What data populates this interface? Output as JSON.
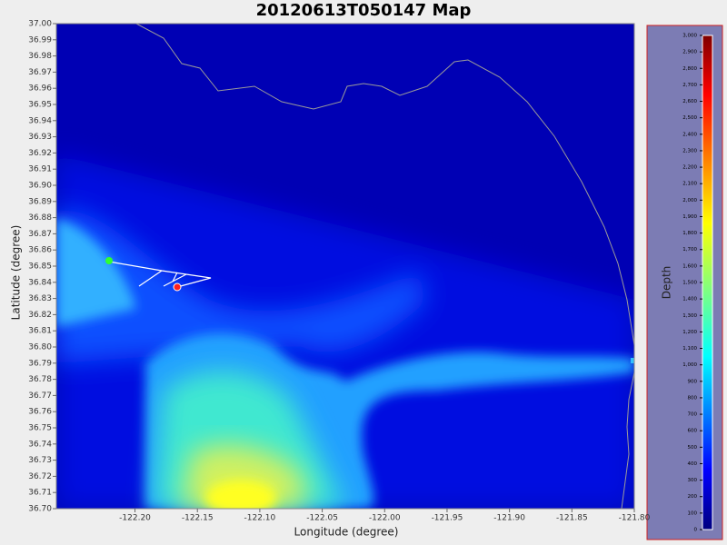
{
  "title": "20120613T050147 Map",
  "x_axis": {
    "label": "Longitude (degree)",
    "lim": [
      -122.263,
      -121.8
    ],
    "ticks": [
      {
        "value": -122.2,
        "label": "-122.20"
      },
      -122.15,
      {
        "value": -122.1,
        "label": "-122.10"
      },
      -122.05,
      {
        "value": -122.0,
        "label": "-122.00"
      },
      -121.95,
      {
        "value": -121.9,
        "label": "-121.90"
      },
      -121.85,
      {
        "value": -121.8,
        "label": "-121.80"
      }
    ]
  },
  "y_axis": {
    "label": "Latitude (degree)",
    "lim": [
      36.7,
      37.0
    ],
    "ticks": [
      {
        "value": 36.7,
        "label": "36.70"
      },
      36.71,
      36.72,
      36.73,
      36.74,
      36.75,
      36.76,
      36.77,
      36.78,
      36.79,
      {
        "value": 36.8,
        "label": "36.80"
      },
      36.81,
      36.82,
      36.83,
      36.84,
      36.85,
      36.86,
      36.87,
      36.88,
      36.89,
      {
        "value": 36.9,
        "label": "36.90"
      },
      36.91,
      36.92,
      36.93,
      36.94,
      36.95,
      36.96,
      36.97,
      36.98,
      36.99,
      {
        "value": 37.0,
        "label": "37.00"
      }
    ]
  },
  "colorbar": {
    "label": "Depth",
    "lim": [
      0,
      3000
    ],
    "ticks": [
      0,
      100,
      200,
      300,
      400,
      500,
      600,
      700,
      800,
      900,
      {
        "value": 1000,
        "label": "1,000"
      },
      {
        "value": 1100,
        "label": "1,100"
      },
      {
        "value": 1200,
        "label": "1,200"
      },
      {
        "value": 1300,
        "label": "1,300"
      },
      {
        "value": 1400,
        "label": "1,400"
      },
      {
        "value": 1500,
        "label": "1,500"
      },
      {
        "value": 1600,
        "label": "1,600"
      },
      {
        "value": 1700,
        "label": "1,700"
      },
      {
        "value": 1800,
        "label": "1,800"
      },
      {
        "value": 1900,
        "label": "1,900"
      },
      {
        "value": 2000,
        "label": "2,000"
      },
      {
        "value": 2100,
        "label": "2,100"
      },
      {
        "value": 2200,
        "label": "2,200"
      },
      {
        "value": 2300,
        "label": "2,300"
      },
      {
        "value": 2400,
        "label": "2,400"
      },
      {
        "value": 2500,
        "label": "2,500"
      },
      {
        "value": 2600,
        "label": "2,600"
      },
      {
        "value": 2700,
        "label": "2,700"
      },
      {
        "value": 2800,
        "label": "2,800"
      },
      {
        "value": 2900,
        "label": "2,900"
      },
      {
        "value": 3000,
        "label": "3,000"
      }
    ]
  }
}
